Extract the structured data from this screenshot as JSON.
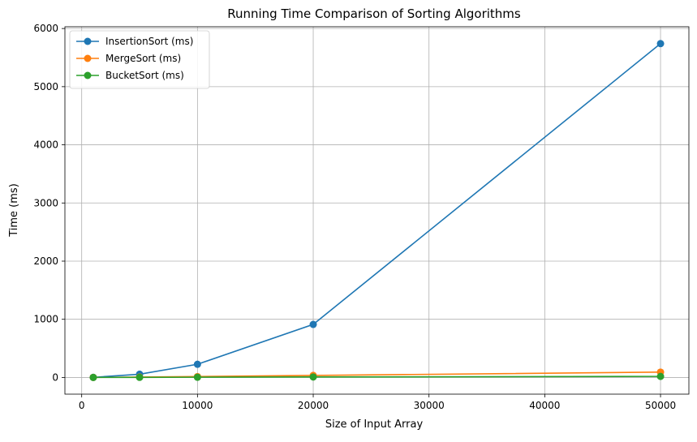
{
  "chart_data": {
    "type": "line",
    "title": "Running Time Comparison of Sorting Algorithms",
    "xlabel": "Size of Input Array",
    "ylabel": "Time (ms)",
    "x": [
      1000,
      5000,
      10000,
      20000,
      50000
    ],
    "xlim": [
      -1450,
      52450
    ],
    "ylim": [
      -287,
      6030
    ],
    "xticks": [
      0,
      10000,
      20000,
      30000,
      40000,
      50000
    ],
    "yticks": [
      0,
      1000,
      2000,
      3000,
      4000,
      5000,
      6000
    ],
    "grid": true,
    "legend_position": "top-left",
    "series": [
      {
        "name": "InsertionSort (ms)",
        "color": "#1f77b4",
        "values": [
          2,
          56,
          227,
          912,
          5740
        ]
      },
      {
        "name": "MergeSort (ms)",
        "color": "#ff7f0e",
        "values": [
          1,
          7,
          15,
          35,
          92
        ]
      },
      {
        "name": "BucketSort (ms)",
        "color": "#2ca02c",
        "values": [
          0.5,
          2,
          4,
          8,
          18
        ]
      }
    ]
  }
}
